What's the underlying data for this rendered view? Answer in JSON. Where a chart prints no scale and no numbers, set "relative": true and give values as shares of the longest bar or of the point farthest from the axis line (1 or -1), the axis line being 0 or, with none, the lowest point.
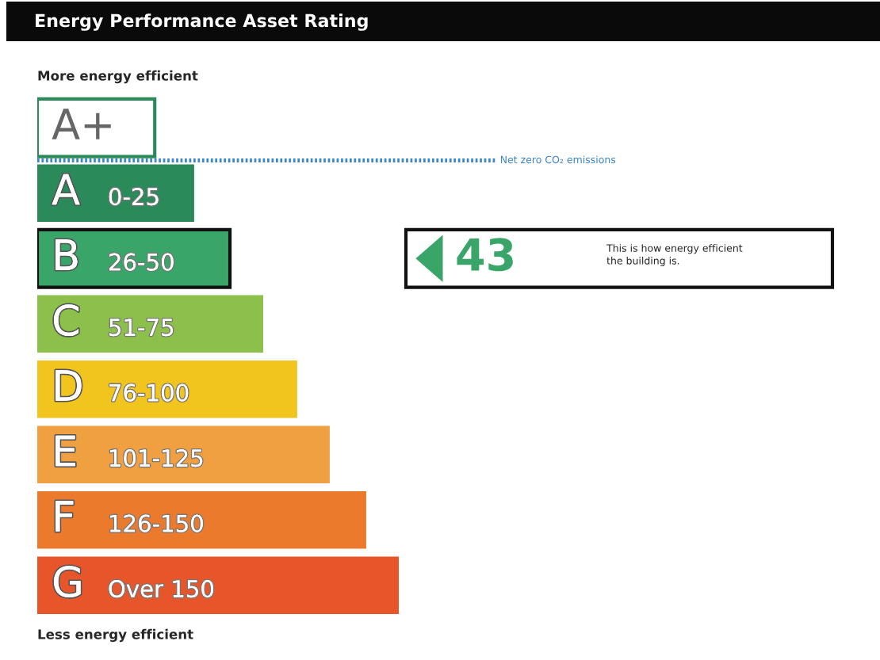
{
  "chart_data": {
    "type": "bar",
    "orientation": "horizontal",
    "relative": true,
    "title": "Energy Performance Asset Rating",
    "categories": [
      "A+",
      "A 0-25",
      "B 26-50",
      "C 51-75",
      "D 76-100",
      "E 101-125",
      "F 126-150",
      "G Over 150"
    ],
    "values": [
      0.325,
      0.434,
      0.533,
      0.625,
      0.719,
      0.809,
      0.91,
      1
    ],
    "colors": [
      "#ffffff",
      "#2a8a5a",
      "#3aa568",
      "#8cc04a",
      "#f2c41e",
      "#f0a040",
      "#ec7a2c",
      "#e6562a"
    ],
    "annotations": [
      "More energy efficient",
      "Net zero CO₂ emissions",
      "43",
      "This is how energy efficient\nthe building is.",
      "Less energy efficient"
    ]
  }
}
